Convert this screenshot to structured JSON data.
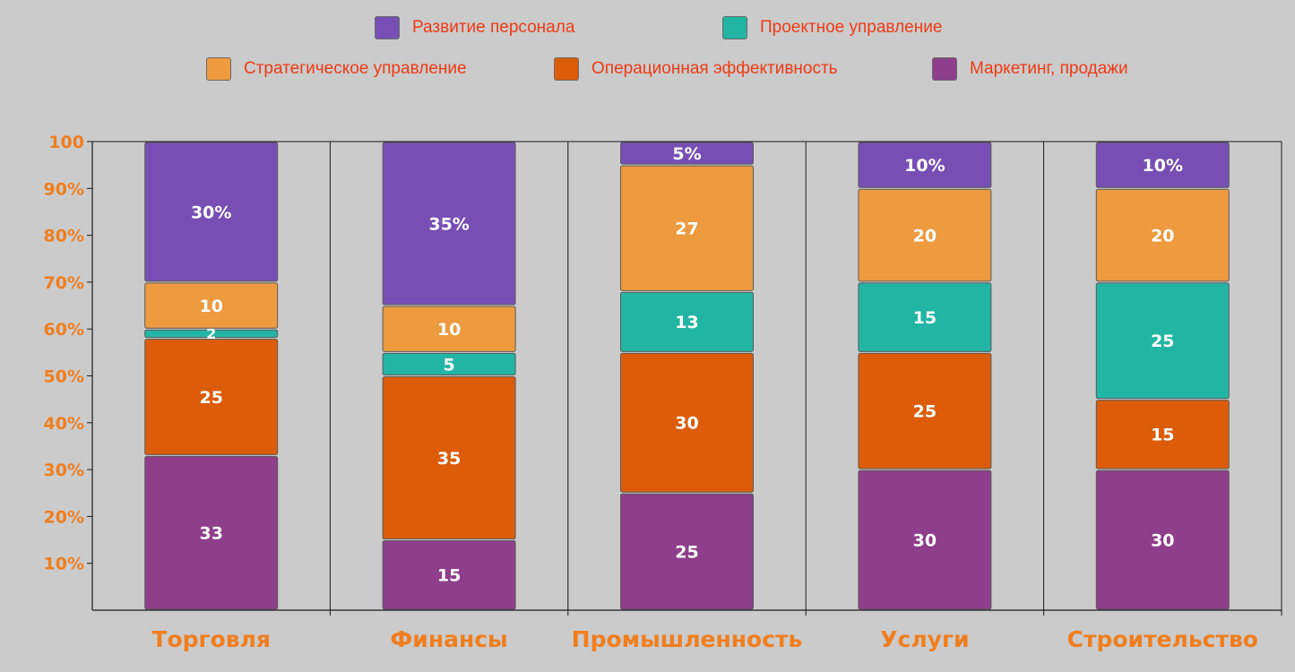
{
  "chart_data": {
    "type": "bar",
    "stacked": true,
    "categories": [
      "Торговля",
      "Финансы",
      "Промышленность",
      "Услуги",
      "Строительство"
    ],
    "series": [
      {
        "name": "Маркетинг, продажи",
        "color": "#8e3e8a",
        "values": [
          33,
          15,
          25,
          30,
          30
        ],
        "labels": [
          "33",
          "15",
          "25",
          "30",
          "30"
        ]
      },
      {
        "name": "Операционная эффективность",
        "color": "#dc5c0a",
        "values": [
          25,
          35,
          30,
          25,
          15
        ],
        "labels": [
          "25",
          "35",
          "30",
          "25",
          "15"
        ]
      },
      {
        "name": "Проектное управление",
        "color": "#22b5a3",
        "values": [
          2,
          5,
          13,
          15,
          25
        ],
        "labels": [
          "2",
          "5",
          "13",
          "15",
          "25"
        ]
      },
      {
        "name": "Стратегическое управление",
        "color": "#ee9a3e",
        "values": [
          10,
          10,
          27,
          20,
          20
        ],
        "labels": [
          "10",
          "10",
          "27",
          "20",
          "20"
        ]
      },
      {
        "name": "Развитие персонала",
        "color": "#774fb4",
        "values": [
          30,
          35,
          5,
          10,
          10
        ],
        "labels": [
          "30%",
          "35%",
          "5%",
          "10%",
          "10%"
        ]
      }
    ],
    "y_ticks": [
      "10%",
      "20%",
      "30%",
      "40%",
      "50%",
      "60%",
      "70%",
      "80%",
      "90%",
      "100"
    ],
    "ylim": [
      0,
      100
    ],
    "grid": "vertical-category-separators",
    "legend_position": "top",
    "legend_order": [
      "Развитие персонала",
      "Проектное управление",
      "Стратегическое управление",
      "Операционная эффективность",
      "Маркетинг, продажи"
    ]
  },
  "colors": {
    "axis_text": "#f07e1e",
    "legend_text": "#ee3a16",
    "background": "#cbcbcb"
  }
}
